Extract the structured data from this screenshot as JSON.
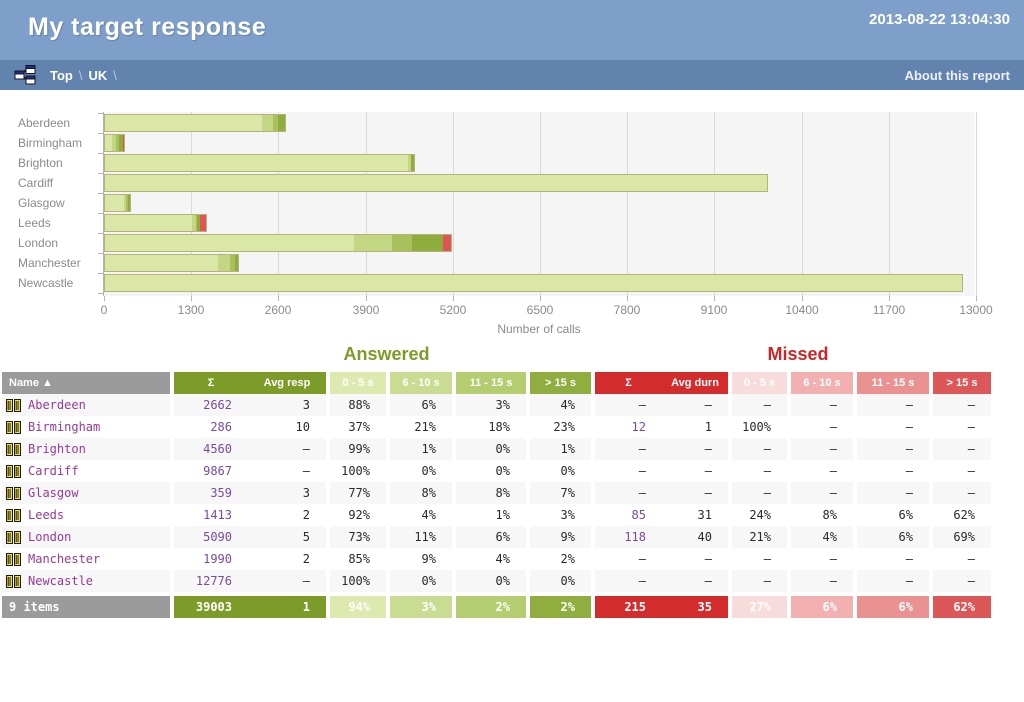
{
  "header": {
    "title": "My target response",
    "timestamp": "2013-08-22 13:04:30"
  },
  "breadcrumb": {
    "items": [
      "Top",
      "UK"
    ],
    "separator": "\\",
    "about": "About this report"
  },
  "chart_data": {
    "type": "bar",
    "orientation": "horizontal-stacked",
    "xlabel": "Number of calls",
    "xlim": [
      0,
      13000
    ],
    "xticks": [
      0,
      1300,
      2600,
      3900,
      5200,
      6500,
      7800,
      9100,
      10400,
      11700,
      13000
    ],
    "segment_labels": [
      "0 - 5 s",
      "6 - 10 s",
      "11 - 15 s",
      "> 15 s",
      "missed"
    ],
    "segment_colors": [
      "#dbe7a6",
      "#c3d681",
      "#a9c15d",
      "#8fad3c",
      "#e05454"
    ],
    "plot_bg": "#f5f5f5",
    "grid": true,
    "rows": [
      {
        "name": "Aberdeen",
        "answered_total": 2662,
        "answered_pct": [
          88,
          6,
          3,
          4
        ],
        "missed_total": 0
      },
      {
        "name": "Birmingham",
        "answered_total": 286,
        "answered_pct": [
          37,
          21,
          18,
          23
        ],
        "missed_total": 12
      },
      {
        "name": "Brighton",
        "answered_total": 4560,
        "answered_pct": [
          99,
          1,
          0,
          1
        ],
        "missed_total": 0
      },
      {
        "name": "Cardiff",
        "answered_total": 9867,
        "answered_pct": [
          100,
          0,
          0,
          0
        ],
        "missed_total": 0
      },
      {
        "name": "Glasgow",
        "answered_total": 359,
        "answered_pct": [
          77,
          8,
          8,
          7
        ],
        "missed_total": 0
      },
      {
        "name": "Leeds",
        "answered_total": 1413,
        "answered_pct": [
          92,
          4,
          1,
          3
        ],
        "missed_total": 85
      },
      {
        "name": "London",
        "answered_total": 5090,
        "answered_pct": [
          73,
          11,
          6,
          9
        ],
        "missed_total": 118
      },
      {
        "name": "Manchester",
        "answered_total": 1990,
        "answered_pct": [
          85,
          9,
          4,
          2
        ],
        "missed_total": 0
      },
      {
        "name": "Newcastle",
        "answered_total": 12776,
        "answered_pct": [
          100,
          0,
          0,
          0
        ],
        "missed_total": 0
      }
    ]
  },
  "table": {
    "answered_title": "Answered",
    "missed_title": "Missed",
    "headers": {
      "name": "Name ▲",
      "sum": "Σ",
      "avg_resp": "Avg resp",
      "avg_durn": "Avg durn",
      "buckets": [
        "0 - 5 s",
        "6 - 10 s",
        "11 - 15 s",
        "> 15 s"
      ]
    },
    "rows": [
      {
        "name": "Aberdeen",
        "a_sum": "2662",
        "a_avg": "3",
        "a": [
          "88%",
          "6%",
          "3%",
          "4%"
        ],
        "m_sum": "–",
        "m_avg": "–",
        "m": [
          "–",
          "–",
          "–",
          "–"
        ]
      },
      {
        "name": "Birmingham",
        "a_sum": "286",
        "a_avg": "10",
        "a": [
          "37%",
          "21%",
          "18%",
          "23%"
        ],
        "m_sum": "12",
        "m_avg": "1",
        "m": [
          "100%",
          "–",
          "–",
          "–"
        ]
      },
      {
        "name": "Brighton",
        "a_sum": "4560",
        "a_avg": "–",
        "a": [
          "99%",
          "1%",
          "0%",
          "1%"
        ],
        "m_sum": "–",
        "m_avg": "–",
        "m": [
          "–",
          "–",
          "–",
          "–"
        ]
      },
      {
        "name": "Cardiff",
        "a_sum": "9867",
        "a_avg": "–",
        "a": [
          "100%",
          "0%",
          "0%",
          "0%"
        ],
        "m_sum": "–",
        "m_avg": "–",
        "m": [
          "–",
          "–",
          "–",
          "–"
        ]
      },
      {
        "name": "Glasgow",
        "a_sum": "359",
        "a_avg": "3",
        "a": [
          "77%",
          "8%",
          "8%",
          "7%"
        ],
        "m_sum": "–",
        "m_avg": "–",
        "m": [
          "–",
          "–",
          "–",
          "–"
        ]
      },
      {
        "name": "Leeds",
        "a_sum": "1413",
        "a_avg": "2",
        "a": [
          "92%",
          "4%",
          "1%",
          "3%"
        ],
        "m_sum": "85",
        "m_avg": "31",
        "m": [
          "24%",
          "8%",
          "6%",
          "62%"
        ]
      },
      {
        "name": "London",
        "a_sum": "5090",
        "a_avg": "5",
        "a": [
          "73%",
          "11%",
          "6%",
          "9%"
        ],
        "m_sum": "118",
        "m_avg": "40",
        "m": [
          "21%",
          "4%",
          "6%",
          "69%"
        ]
      },
      {
        "name": "Manchester",
        "a_sum": "1990",
        "a_avg": "2",
        "a": [
          "85%",
          "9%",
          "4%",
          "2%"
        ],
        "m_sum": "–",
        "m_avg": "–",
        "m": [
          "–",
          "–",
          "–",
          "–"
        ]
      },
      {
        "name": "Newcastle",
        "a_sum": "12776",
        "a_avg": "–",
        "a": [
          "100%",
          "0%",
          "0%",
          "0%"
        ],
        "m_sum": "–",
        "m_avg": "–",
        "m": [
          "–",
          "–",
          "–",
          "–"
        ]
      }
    ],
    "footer": {
      "label": "9 items",
      "a_sum": "39003",
      "a_avg": "1",
      "a": [
        "94%",
        "3%",
        "2%",
        "2%"
      ],
      "m_sum": "215",
      "m_avg": "35",
      "m": [
        "27%",
        "6%",
        "6%",
        "62%"
      ]
    }
  },
  "colors": {
    "header_bg": "#7d9fc9",
    "crumb_bg": "#6283ae",
    "answered_accent": "#7d9b28",
    "missed_accent": "#d22c2c",
    "link_purple": "#963a96"
  }
}
